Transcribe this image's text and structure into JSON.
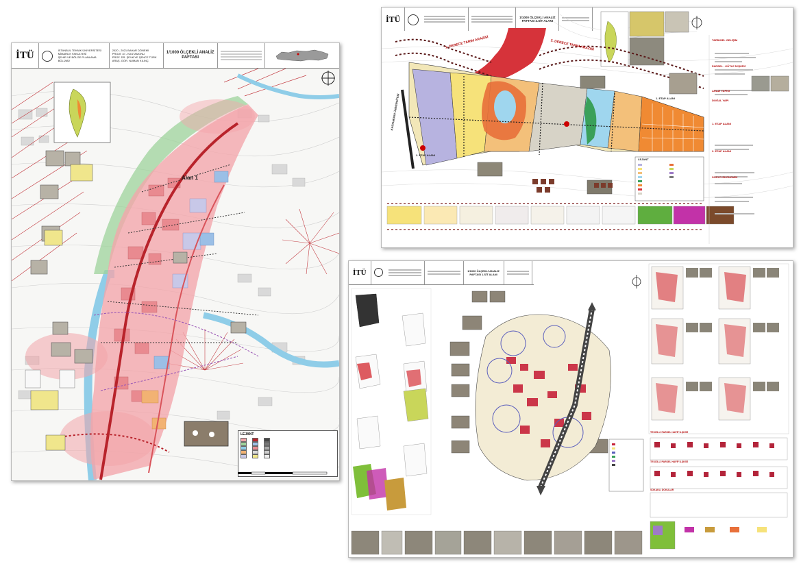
{
  "sheets": {
    "left": {
      "logo": "İTÜ",
      "university_lines": [
        "İSTANBUL TEKNİK ÜNİVERSİTESİ",
        "MİMARLIK FAKÜLTESİ",
        "ŞEHİR VE BÖLGE PLANLAMA",
        "BÖLÜMÜ"
      ],
      "course_lines": [
        "2020 - 2021 BAHAR DÖNEMİ",
        "PROJE 1II - KASTAMONU",
        "PROF. DR. ŞEVKİYE ŞENCE TÜRK",
        "ARAŞ. GÖR. NUMAN KILINÇ"
      ],
      "scale_title": "1/1000 ÖLÇEKLİ ANALİZ PAFTASI",
      "area_label": "Alan 1",
      "legend_title": "LEJANT"
    },
    "top_right": {
      "logo": "İTÜ",
      "scale_title": "1/1000 ÖLÇEKLİ ANALİZ PAFTASI 2.SİT ALANI",
      "river_label_1": "1. DERECE TARIM ARAZİSİ",
      "river_label_2": "2. DERECE TARIM ARAZİSİ",
      "university_road": "KASTAMONU ÜNİVERSİTESİ",
      "etap1": "1. ETAP ALANI",
      "etap2": "2. ETAP ALANI",
      "legend_title": "LEJANT",
      "side_headings": [
        "TARİHSEL GELİŞİM",
        "PARSEL - KÜTLE İLİŞKİSİ",
        "ARAZİ YAPISI",
        "DOĞAL YAPI",
        "1. ETAP ALANI",
        "2. ETAP ALANI",
        "SOSYO EKONOMİK"
      ]
    },
    "bottom_right": {
      "logo": "İTÜ",
      "scale_title": "1/1000 ÖLÇEKLİ ANALİZ PAFTASI 1.SİT ALANI",
      "section_1": "TESCİLLİ PARSEL HAFİF İLŞKİSİ",
      "section_2": "TESCİLLİ PARSEL HAFİF İLŞKİSİ",
      "section_3": "SOKAKLI DOKULAR"
    }
  },
  "colors": {
    "pink_zone": "#f2a3a8",
    "green_zone": "#9ed39b",
    "river": "#9fd6ee",
    "road_red": "#c0392b",
    "orange": "#f08a33",
    "lilac": "#b4b2e0",
    "yellow": "#f6e27a"
  }
}
